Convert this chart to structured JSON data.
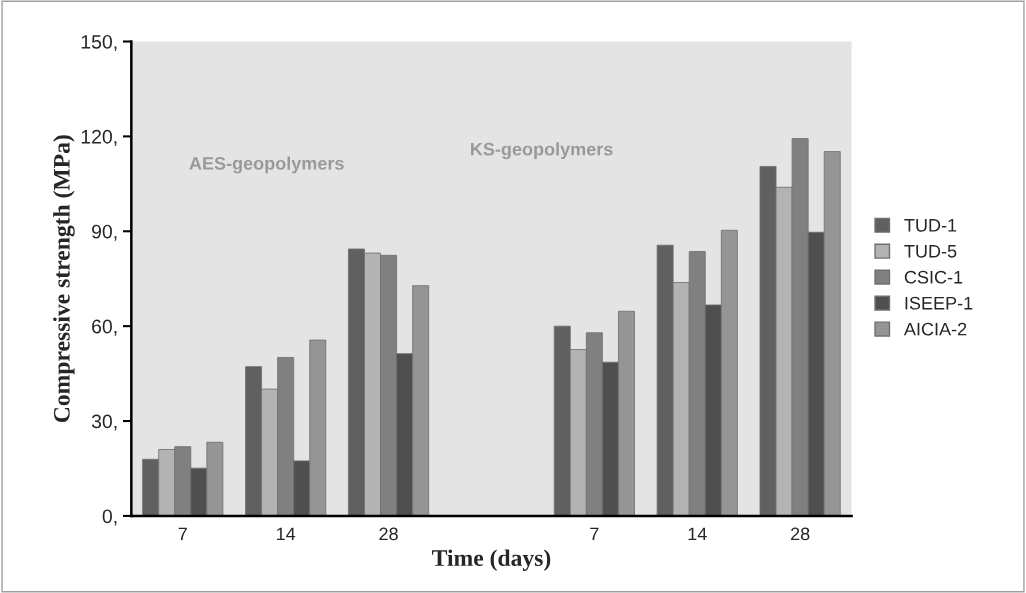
{
  "chart_data": {
    "type": "bar",
    "xlabel": "Time (days)",
    "ylabel": "Compressive strength (MPa)",
    "categories": [
      "7",
      "14",
      "28",
      null,
      "7",
      "14",
      "28"
    ],
    "series": [
      {
        "name": "TUD-1",
        "color": "#606060",
        "values": [
          17.9,
          47.2,
          84.4,
          null,
          60.0,
          85.6,
          110.5
        ]
      },
      {
        "name": "TUD-5",
        "color": "#b3b3b3",
        "values": [
          21.0,
          40.1,
          83.1,
          null,
          52.6,
          73.8,
          103.9
        ]
      },
      {
        "name": "CSIC-1",
        "color": "#808080",
        "values": [
          21.9,
          50.1,
          82.4,
          null,
          57.9,
          83.6,
          119.3
        ]
      },
      {
        "name": "ISEEP-1",
        "color": "#4f4f4f",
        "values": [
          15.1,
          17.4,
          51.3,
          null,
          48.6,
          66.7,
          89.7
        ]
      },
      {
        "name": "AICIA-2",
        "color": "#959595",
        "values": [
          23.3,
          55.6,
          72.8,
          null,
          64.7,
          90.3,
          115.2
        ]
      }
    ],
    "ylim": [
      0,
      150
    ],
    "yticks": [
      {
        "value": 0,
        "label": "0,"
      },
      {
        "value": 30,
        "label": "30,"
      },
      {
        "value": 60,
        "label": "60,"
      },
      {
        "value": 90,
        "label": "90,"
      },
      {
        "value": 120,
        "label": "120,"
      },
      {
        "value": 150,
        "label": "150,"
      }
    ],
    "annotations": [
      "AES-geopolymers",
      "KS-geopolymers"
    ],
    "grid": false,
    "legend": "right"
  }
}
